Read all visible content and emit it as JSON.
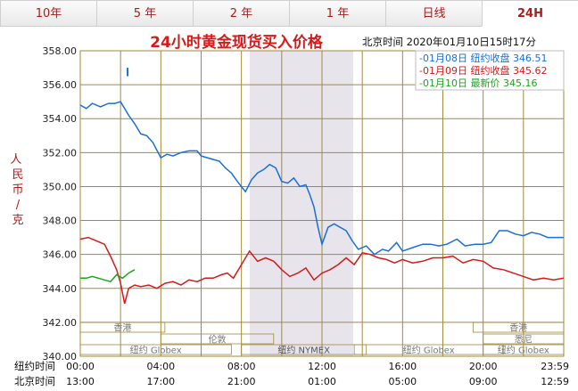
{
  "tabs": [
    {
      "label": "10年",
      "active": false
    },
    {
      "label": "5 年",
      "active": false
    },
    {
      "label": "2 年",
      "active": false
    },
    {
      "label": "1 年",
      "active": false
    },
    {
      "label": "日线",
      "active": false
    },
    {
      "label": "24H",
      "active": true
    }
  ],
  "header": {
    "title": "24小时黄金现货买入价格",
    "timestamp": "北京时间  2020年01月10日15时17分"
  },
  "legend": [
    {
      "text": "-01月08日  纽约收盘 346.51",
      "color": "#1a6fd6"
    },
    {
      "text": "-01月09日  纽约收盘 345.62",
      "color": "#d61a1a"
    },
    {
      "text": "-01月10日   最新价 345.16",
      "color": "#1aa61a"
    }
  ],
  "markets": [
    {
      "label": "香港"
    },
    {
      "label": "伦敦"
    },
    {
      "label": "纽约 Globex"
    },
    {
      "label": "纽约 NYMEX"
    },
    {
      "label": "纽约 Globex"
    },
    {
      "label": "香港"
    },
    {
      "label": "悉尼"
    },
    {
      "label": "纽约 Globex"
    }
  ],
  "chart_data": {
    "type": "line",
    "ylabel": "人民币/克",
    "ylim": [
      340,
      358
    ],
    "yticks": [
      "358.00",
      "356.00",
      "354.00",
      "352.00",
      "350.00",
      "348.00",
      "346.00",
      "344.00",
      "342.00",
      "340.00"
    ],
    "xlim": [
      0,
      24
    ],
    "x_rows": [
      {
        "label": "纽约时间",
        "ticks": [
          "00:00",
          "04:00",
          "08:00",
          "12:00",
          "16:00",
          "20:00",
          "23:59"
        ]
      },
      {
        "label": "北京时间",
        "ticks": [
          "13:00",
          "17:00",
          "21:00",
          "01:00",
          "05:00",
          "09:00",
          "12:59"
        ]
      }
    ],
    "series": [
      {
        "name": "01月08日",
        "color": "#1a6fd6",
        "x": [
          0,
          0.3,
          0.6,
          1,
          1.4,
          1.7,
          2,
          2.4,
          2.7,
          3,
          3.3,
          3.6,
          4,
          4.3,
          4.6,
          5,
          5.4,
          5.8,
          6,
          6.3,
          6.6,
          6.9,
          7.2,
          7.5,
          7.8,
          8.2,
          8.5,
          8.8,
          9.1,
          9.4,
          9.7,
          10,
          10.3,
          10.6,
          10.9,
          11.2,
          11.4,
          11.6,
          11.8,
          12,
          12.3,
          12.6,
          12.9,
          13.2,
          13.5,
          13.8,
          14.2,
          14.6,
          15,
          15.3,
          15.7,
          16,
          16.5,
          17,
          17.4,
          17.8,
          18.2,
          18.7,
          19.1,
          19.6,
          20,
          20.4,
          20.8,
          21.2,
          21.6,
          22,
          22.4,
          22.8,
          23.2,
          23.6,
          23.99
        ],
        "values": [
          354.8,
          354.6,
          354.9,
          354.7,
          354.9,
          354.9,
          355.0,
          354.2,
          353.7,
          353.1,
          353.0,
          352.6,
          351.7,
          351.9,
          351.8,
          352.0,
          352.1,
          352.1,
          351.8,
          351.7,
          351.6,
          351.5,
          351.1,
          350.8,
          350.3,
          349.7,
          350.4,
          350.8,
          351.0,
          351.3,
          351.1,
          350.3,
          350.2,
          350.5,
          350.0,
          350.1,
          349.5,
          348.8,
          347.6,
          346.6,
          347.6,
          347.8,
          347.6,
          347.4,
          346.8,
          346.3,
          346.5,
          346.0,
          346.3,
          346.2,
          346.7,
          346.2,
          346.4,
          346.6,
          346.6,
          346.5,
          346.6,
          346.9,
          346.5,
          346.6,
          346.6,
          346.7,
          347.4,
          347.4,
          347.2,
          347.1,
          347.3,
          347.2,
          347.0,
          347.0,
          347.0
        ]
      },
      {
        "name": "01月09日",
        "color": "#d61a1a",
        "x": [
          0,
          0.4,
          0.8,
          1.2,
          1.5,
          1.8,
          2,
          2.2,
          2.4,
          2.7,
          3,
          3.4,
          3.8,
          4.2,
          4.6,
          5,
          5.4,
          5.8,
          6.2,
          6.6,
          7,
          7.3,
          7.6,
          8,
          8.4,
          8.8,
          9.2,
          9.6,
          10,
          10.4,
          10.8,
          11.2,
          11.6,
          12,
          12.4,
          12.8,
          13.2,
          13.6,
          14,
          14.4,
          14.8,
          15.2,
          15.6,
          16,
          16.5,
          17,
          17.5,
          18,
          18.5,
          19,
          19.5,
          20,
          20.5,
          21,
          21.5,
          22,
          22.5,
          23,
          23.5,
          23.99
        ],
        "values": [
          346.9,
          347.0,
          346.8,
          346.6,
          345.9,
          345.1,
          344.3,
          343.1,
          344.0,
          344.2,
          344.1,
          344.2,
          344.0,
          344.3,
          344.4,
          344.2,
          344.5,
          344.4,
          344.6,
          344.6,
          344.8,
          344.9,
          344.6,
          345.4,
          346.2,
          345.6,
          345.8,
          345.6,
          345.1,
          344.7,
          344.9,
          345.2,
          344.5,
          344.9,
          345.1,
          345.4,
          345.8,
          345.4,
          346.1,
          346.0,
          345.8,
          345.7,
          345.5,
          345.7,
          345.5,
          345.6,
          345.8,
          345.8,
          345.9,
          345.5,
          345.7,
          345.6,
          345.2,
          345.1,
          344.9,
          344.7,
          344.5,
          344.6,
          344.5,
          344.6
        ]
      },
      {
        "name": "01月10日",
        "color": "#1aa61a",
        "x": [
          0,
          0.3,
          0.6,
          0.9,
          1.2,
          1.5,
          1.8,
          2.1,
          2.4,
          2.7
        ],
        "values": [
          344.6,
          344.6,
          344.7,
          344.6,
          344.5,
          344.4,
          344.8,
          344.6,
          344.9,
          345.1
        ]
      }
    ]
  }
}
